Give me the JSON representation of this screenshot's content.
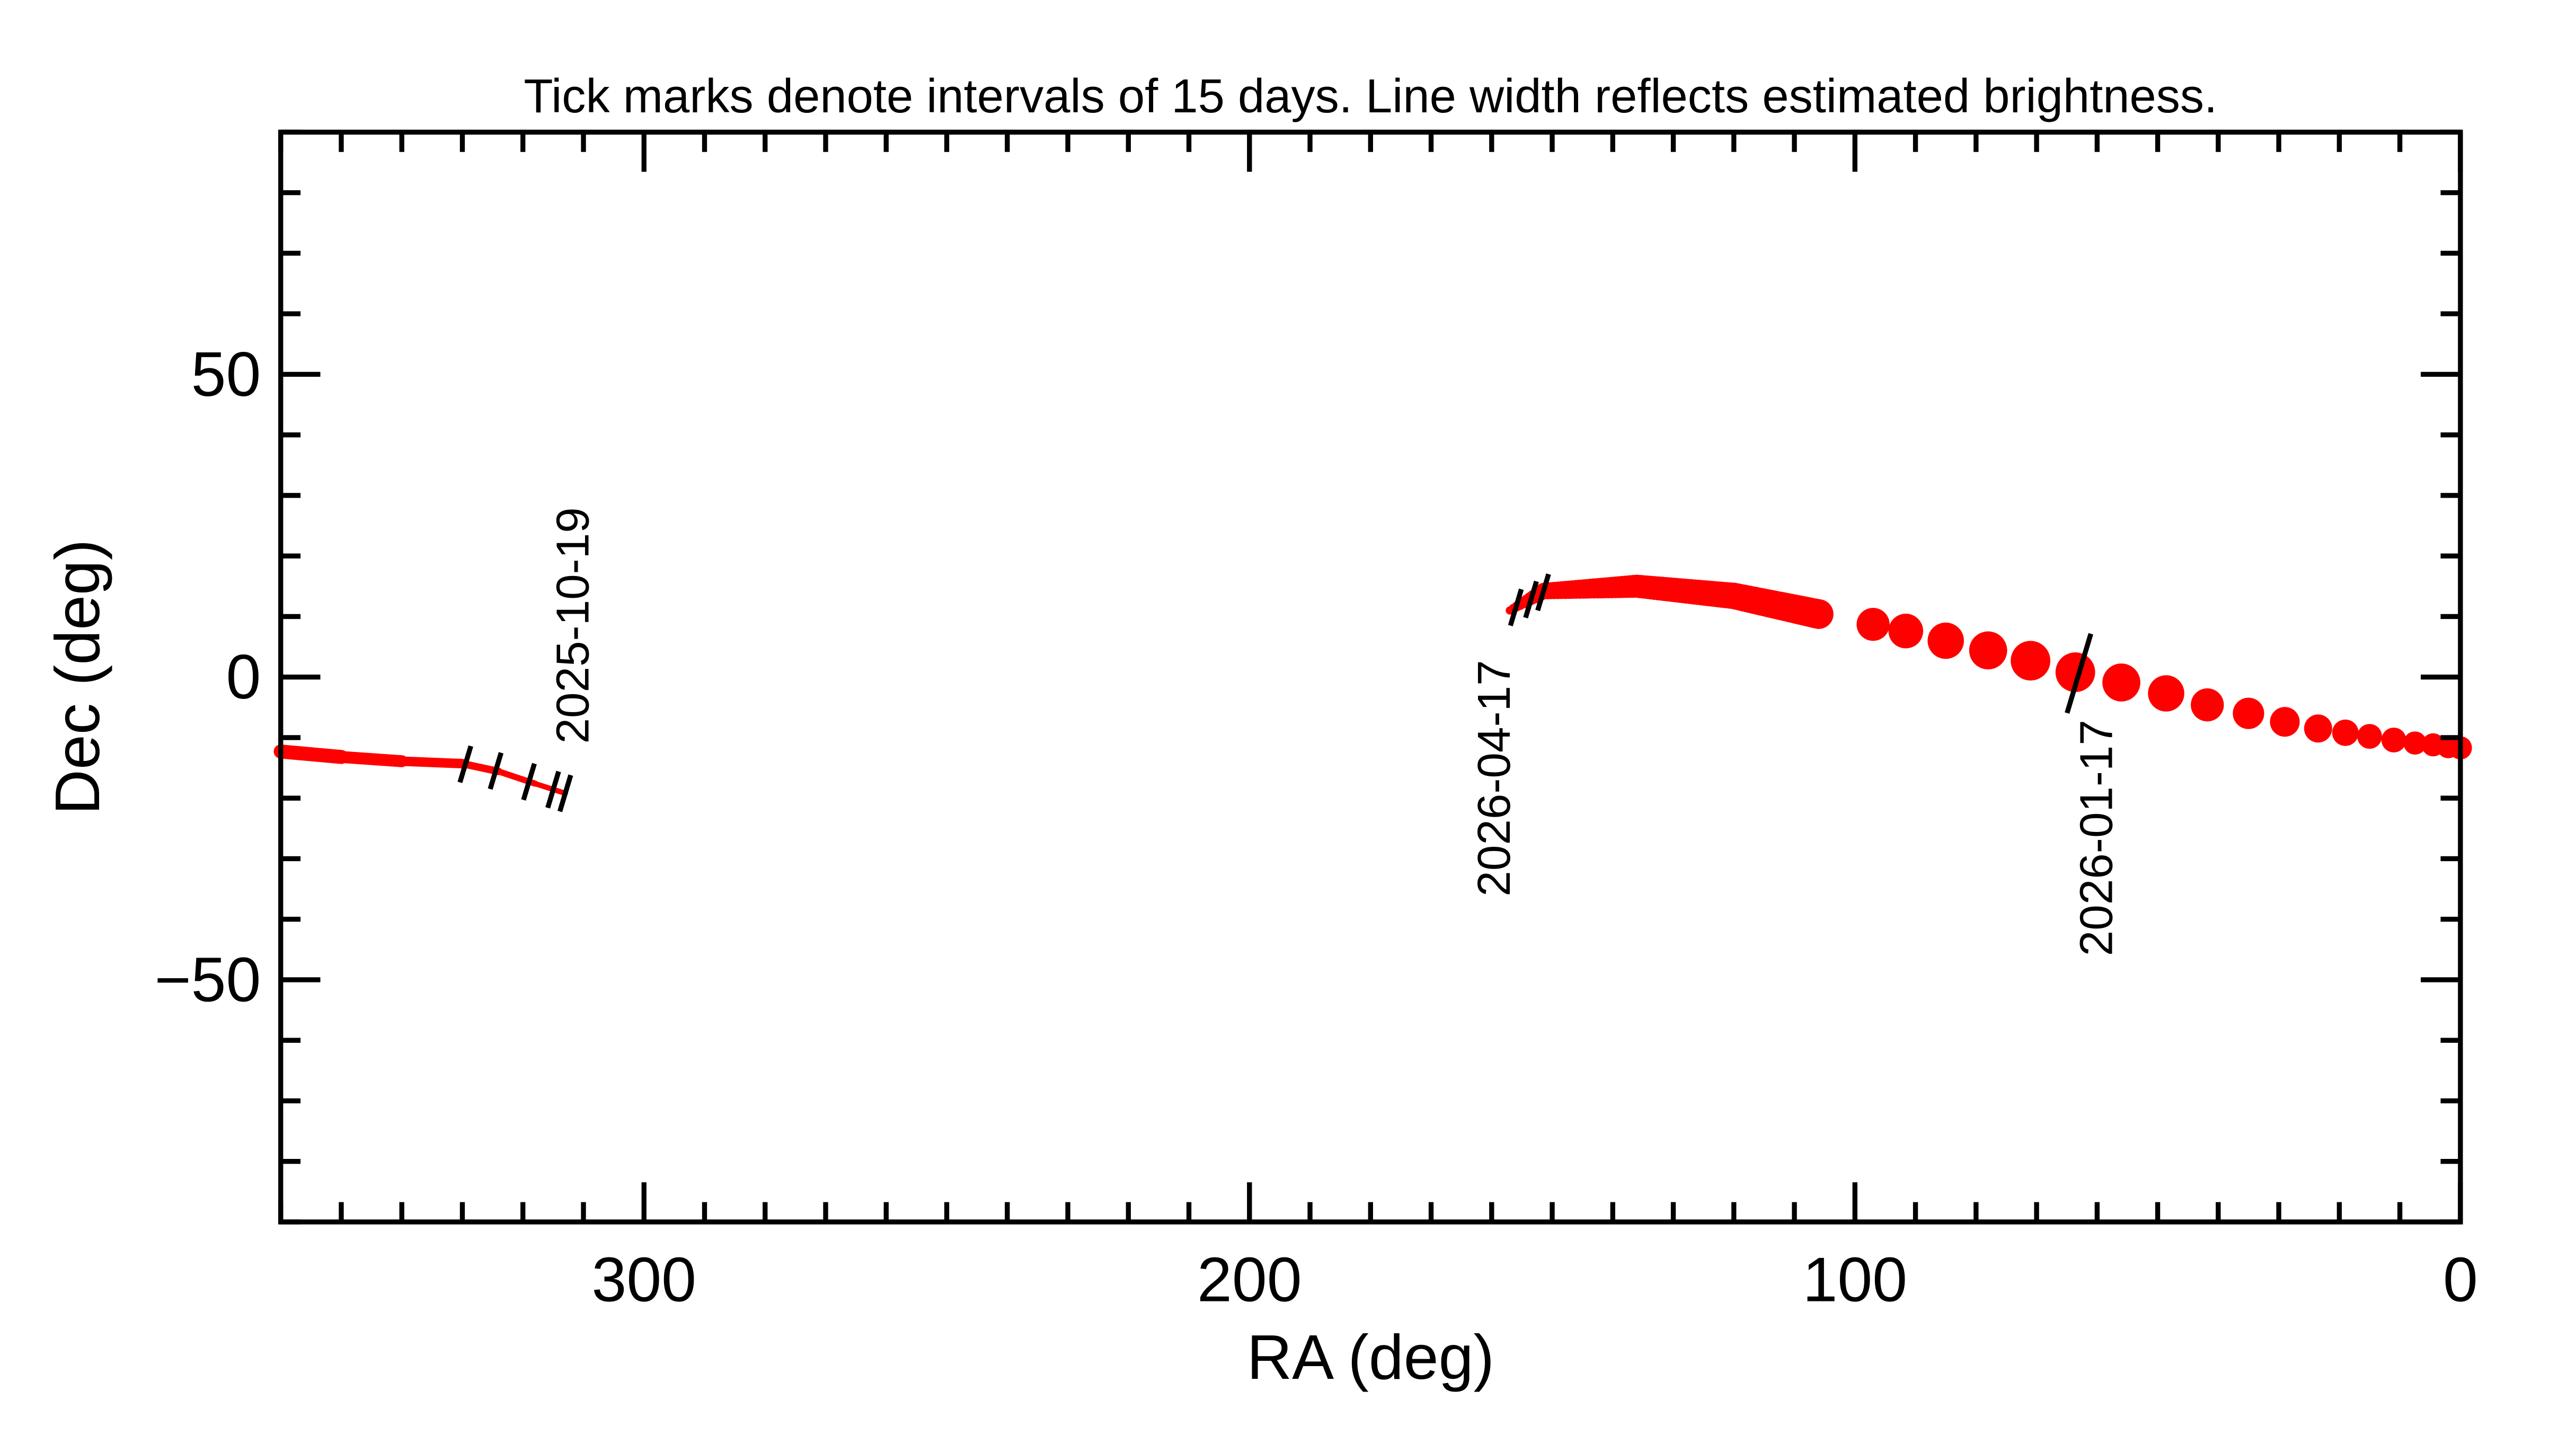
{
  "chart_data": {
    "type": "line",
    "title": "Tick marks denote intervals of 15 days.  Line width reflects estimated brightness.",
    "xlabel": "RA (deg)",
    "ylabel": "Dec (deg)",
    "xlim": [
      360,
      0
    ],
    "ylim": [
      -90,
      90
    ],
    "x_reversed": true,
    "xticks": [
      300,
      200,
      100,
      0
    ],
    "xtick_labels": [
      "300",
      "200",
      "100",
      "0"
    ],
    "yticks": [
      -50,
      0,
      50
    ],
    "ytick_labels": [
      "−50",
      "0",
      "50"
    ],
    "grid": false,
    "track_color": "#ff0000",
    "tick_color": "#000000",
    "segments": [
      {
        "points": [
          {
            "ra": 360,
            "dec": -12.3,
            "width": 9
          },
          {
            "ra": 350,
            "dec": -13.2,
            "width": 8
          },
          {
            "ra": 340,
            "dec": -13.9,
            "width": 6.5
          },
          {
            "ra": 330,
            "dec": -14.3,
            "width": 5
          },
          {
            "ra": 324,
            "dec": -15.6,
            "width": 4
          },
          {
            "ra": 318,
            "dec": -17.6,
            "width": 3.5
          },
          {
            "ra": 313,
            "dec": -19.2,
            "width": 3
          }
        ]
      },
      {
        "points": [
          {
            "ra": 157,
            "dec": 11.0,
            "width": 2.5
          },
          {
            "ra": 151.4,
            "dec": 14.2,
            "width": 5
          },
          {
            "ra": 136,
            "dec": 15.0,
            "width": 7
          },
          {
            "ra": 120,
            "dec": 13.4,
            "width": 8
          },
          {
            "ra": 106,
            "dec": 10.4,
            "width": 9
          },
          {
            "ra": 97,
            "dec": 8.7,
            "width": 10
          },
          {
            "ra": 91.6,
            "dec": 7.6,
            "width": 10.5
          },
          {
            "ra": 85,
            "dec": 6.0,
            "width": 11
          },
          {
            "ra": 78,
            "dec": 4.4,
            "width": 11.5
          },
          {
            "ra": 71,
            "dec": 2.7,
            "width": 12
          },
          {
            "ra": 63.6,
            "dec": 0.8,
            "width": 12
          },
          {
            "ra": 56,
            "dec": -0.9,
            "width": 11.5
          },
          {
            "ra": 48.6,
            "dec": -2.7,
            "width": 11
          },
          {
            "ra": 41.8,
            "dec": -4.6,
            "width": 10
          },
          {
            "ra": 35,
            "dec": -6.0,
            "width": 9.5
          },
          {
            "ra": 29,
            "dec": -7.4,
            "width": 9
          },
          {
            "ra": 23.5,
            "dec": -8.5,
            "width": 8.5
          },
          {
            "ra": 19,
            "dec": -9.2,
            "width": 8
          },
          {
            "ra": 15,
            "dec": -9.8,
            "width": 7.5
          },
          {
            "ra": 11,
            "dec": -10.4,
            "width": 7.5
          },
          {
            "ra": 7.5,
            "dec": -10.9,
            "width": 7
          },
          {
            "ra": 4.5,
            "dec": -11.2,
            "width": 7
          },
          {
            "ra": 2,
            "dec": -11.5,
            "width": 7
          },
          {
            "ra": 0,
            "dec": -11.7,
            "width": 7
          }
        ]
      }
    ],
    "date_ticks": [
      {
        "ra": 329.5,
        "dec": -14.4
      },
      {
        "ra": 324.5,
        "dec": -15.5
      },
      {
        "ra": 319,
        "dec": -17.3
      },
      {
        "ra": 315,
        "dec": -18.6
      },
      {
        "ra": 313,
        "dec": -19.2
      },
      {
        "ra": 156,
        "dec": 11.5
      },
      {
        "ra": 153.5,
        "dec": 12.8
      },
      {
        "ra": 151.5,
        "dec": 14.0
      },
      {
        "ra": 63,
        "dec": 0.6,
        "long": true
      }
    ],
    "date_labels": [
      {
        "text": "2025-10-19",
        "ra": 313,
        "dec": -19.2
      },
      {
        "text": "2026-04-17",
        "ra": 157,
        "dec": 11.0
      },
      {
        "text": "2026-01-17",
        "ra": 63,
        "dec": 0.6
      }
    ]
  }
}
